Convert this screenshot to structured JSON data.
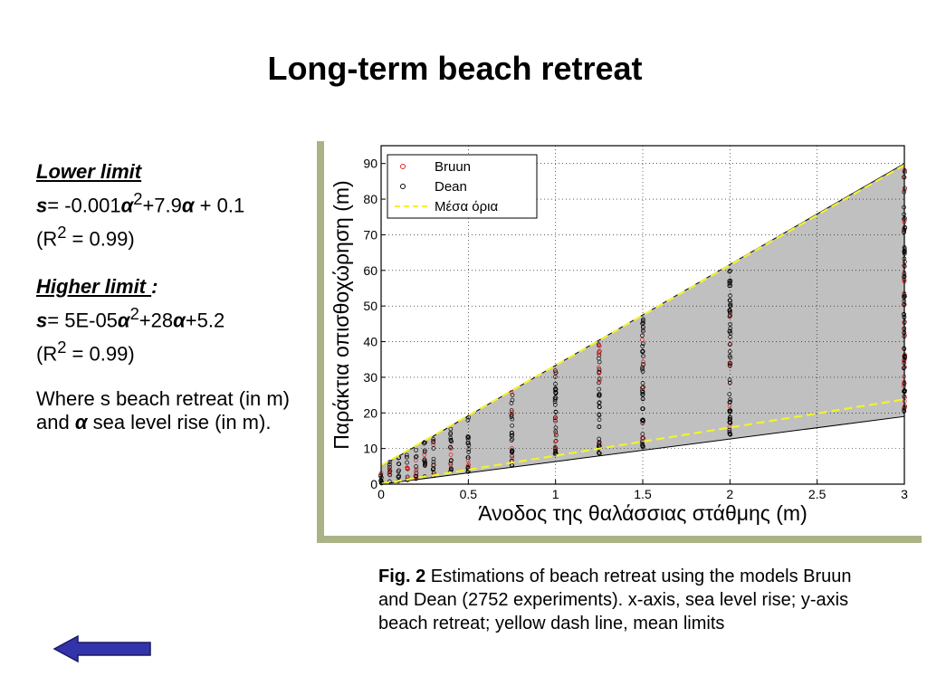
{
  "slide": {
    "title": "Long-term beach retreat",
    "lower_limit": {
      "heading": "Lower limit",
      "eq_var": "s",
      "eq_body": "=  -0.001",
      "eq_a1": "α",
      "eq_sup": "2",
      "eq_mid": "+7.9",
      "eq_a2": "α",
      "eq_end": " + 0.1",
      "r2_open": "(R",
      "r2_sup": "2",
      "r2_close": " = 0.99)"
    },
    "higher_limit": {
      "heading": "Higher limit ",
      "colon": ":",
      "eq_var": "s",
      "eq_body": "= 5E-05",
      "eq_a1": "α",
      "eq_sup": "2",
      "eq_mid": "+28",
      "eq_a2": "α",
      "eq_end": "+5.2",
      "r2_open": "(R",
      "r2_sup": "2",
      "r2_close": " = 0.99)"
    },
    "where": {
      "part1": "Where s beach retreat (in m) and ",
      "alpha": "α",
      "part2": " sea level rise (in m)."
    },
    "caption": {
      "label": "Fig. 2",
      "text": " Estimations of beach retreat using the models Bruun and Dean (2752 experiments). x-axis, sea level rise; y-axis beach retreat; yellow dash line, mean limits"
    },
    "nav": {
      "back_icon": "back-arrow-icon"
    }
  },
  "chart_data": {
    "type": "scatter",
    "xlabel": "Άνοδος της θαλάσσιας στάθμης (m)",
    "ylabel": "Παράκτια οπισθοχώρηση (m)",
    "xlim": [
      0,
      3
    ],
    "ylim": [
      0,
      95
    ],
    "x_ticks": [
      "0",
      "0.5",
      "1",
      "1.5",
      "2",
      "2.5",
      "3"
    ],
    "y_ticks": [
      "0",
      "10",
      "20",
      "30",
      "40",
      "50",
      "60",
      "70",
      "80",
      "90"
    ],
    "grid": true,
    "legend": {
      "placement": "top-left",
      "entries": [
        "Bruun",
        "Dean",
        "Μέσα όρια"
      ]
    },
    "colors": {
      "bruun": "#e02020",
      "dean": "#000000",
      "mean_limits": "#f2f230",
      "envelope": "#c0c0c0"
    },
    "x_levels": [
      0,
      0.05,
      0.1,
      0.15,
      0.2,
      0.25,
      0.3,
      0.4,
      0.5,
      0.75,
      1.0,
      1.25,
      1.5,
      2.0,
      3.0
    ],
    "envelope": {
      "upper": [
        [
          0,
          5
        ],
        [
          3,
          90
        ]
      ],
      "lower": [
        [
          0,
          0
        ],
        [
          3,
          19
        ]
      ]
    },
    "mean_limits": {
      "upper": [
        [
          0,
          5.2
        ],
        [
          3,
          89.6
        ]
      ],
      "lower": [
        [
          0,
          0.1
        ],
        [
          3,
          23.8
        ]
      ]
    },
    "series": [
      {
        "name": "Bruun",
        "marker": "circle",
        "color": "#e02020"
      },
      {
        "name": "Dean",
        "marker": "circle",
        "color": "#000000"
      },
      {
        "name": "Μέσα όρια",
        "style": "dashed",
        "color": "#f2f230"
      }
    ]
  }
}
